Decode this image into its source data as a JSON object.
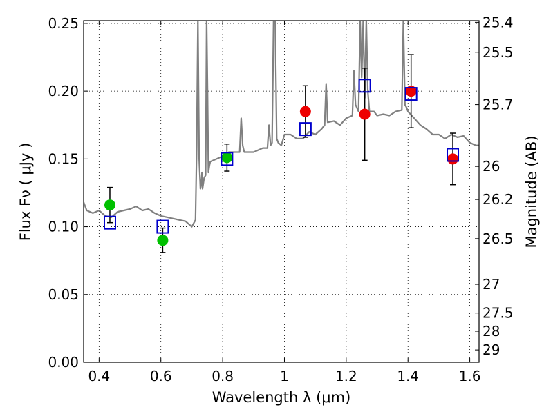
{
  "chart_data": {
    "type": "scatter",
    "xlabel": "Wavelength  λ (μm)",
    "ylabel": "Flux  Fν  ( μJy )",
    "y2label": "Magnitude (AB)",
    "xlim": [
      0.35,
      1.63
    ],
    "ylim": [
      0.0,
      0.252
    ],
    "xticks": [
      0.4,
      0.6,
      0.8,
      1.0,
      1.2,
      1.4,
      1.6
    ],
    "xtick_labels": [
      "0.4",
      "0.6",
      "0.8",
      "1",
      "1.2",
      "1.4",
      "1.6"
    ],
    "yticks": [
      0.0,
      0.05,
      0.1,
      0.15,
      0.2,
      0.25
    ],
    "ytick_labels": [
      "0.00",
      "0.05",
      "0.10",
      "0.15",
      "0.20",
      "0.25"
    ],
    "y2_ticks": [
      {
        "flux": 0.2508,
        "label": "25.4"
      },
      {
        "flux": 0.2287,
        "label": "25.5"
      },
      {
        "flux": 0.1901,
        "label": "25.7"
      },
      {
        "flux": 0.1445,
        "label": "26"
      },
      {
        "flux": 0.1201,
        "label": "26.2"
      },
      {
        "flux": 0.0912,
        "label": "26.5"
      },
      {
        "flux": 0.0575,
        "label": "27"
      },
      {
        "flux": 0.0363,
        "label": "27.5"
      },
      {
        "flux": 0.0229,
        "label": "28"
      },
      {
        "flux": 0.0091,
        "label": "29"
      }
    ],
    "grid": true,
    "colors": {
      "model": "#808080",
      "blue_filters": "#00c000",
      "red_filters": "#ee0000",
      "model_photometry": "#0000cc",
      "error_bars": "#000000"
    },
    "model_spectrum": {
      "x": [
        0.35,
        0.36,
        0.38,
        0.4,
        0.42,
        0.44,
        0.46,
        0.48,
        0.5,
        0.52,
        0.54,
        0.56,
        0.58,
        0.6,
        0.62,
        0.64,
        0.66,
        0.68,
        0.7,
        0.712,
        0.716,
        0.72,
        0.724,
        0.728,
        0.731,
        0.733,
        0.735,
        0.74,
        0.745,
        0.748,
        0.751,
        0.754,
        0.757,
        0.76,
        0.78,
        0.8,
        0.82,
        0.84,
        0.855,
        0.86,
        0.865,
        0.87,
        0.9,
        0.93,
        0.945,
        0.95,
        0.955,
        0.96,
        0.965,
        0.97,
        0.975,
        0.98,
        0.99,
        1.0,
        1.02,
        1.04,
        1.06,
        1.08,
        1.1,
        1.12,
        1.13,
        1.135,
        1.14,
        1.16,
        1.18,
        1.2,
        1.22,
        1.225,
        1.23,
        1.24,
        1.245,
        1.25,
        1.255,
        1.26,
        1.265,
        1.27,
        1.275,
        1.28,
        1.29,
        1.3,
        1.32,
        1.34,
        1.36,
        1.38,
        1.385,
        1.39,
        1.395,
        1.4,
        1.42,
        1.44,
        1.46,
        1.48,
        1.5,
        1.52,
        1.54,
        1.56,
        1.58,
        1.6,
        1.62,
        1.63
      ],
      "y": [
        0.118,
        0.112,
        0.11,
        0.112,
        0.108,
        0.107,
        0.111,
        0.112,
        0.113,
        0.115,
        0.112,
        0.113,
        0.11,
        0.108,
        0.107,
        0.106,
        0.105,
        0.104,
        0.1,
        0.105,
        0.16,
        0.252,
        0.15,
        0.128,
        0.132,
        0.14,
        0.128,
        0.136,
        0.138,
        0.252,
        0.2,
        0.14,
        0.145,
        0.148,
        0.15,
        0.152,
        0.155,
        0.155,
        0.155,
        0.18,
        0.16,
        0.155,
        0.155,
        0.158,
        0.158,
        0.175,
        0.16,
        0.162,
        0.252,
        0.252,
        0.165,
        0.162,
        0.16,
        0.168,
        0.168,
        0.165,
        0.165,
        0.17,
        0.168,
        0.172,
        0.175,
        0.205,
        0.177,
        0.178,
        0.175,
        0.18,
        0.182,
        0.215,
        0.19,
        0.185,
        0.252,
        0.21,
        0.252,
        0.195,
        0.252,
        0.2,
        0.185,
        0.185,
        0.185,
        0.182,
        0.183,
        0.182,
        0.185,
        0.186,
        0.252,
        0.19,
        0.188,
        0.185,
        0.18,
        0.175,
        0.172,
        0.168,
        0.168,
        0.165,
        0.168,
        0.166,
        0.167,
        0.162,
        0.16,
        0.16
      ]
    },
    "series": [
      {
        "marker": "circle",
        "color": "#00c000",
        "points": [
          {
            "x": 0.435,
            "y": 0.116,
            "yerr": 0.013
          },
          {
            "x": 0.606,
            "y": 0.09,
            "yerr": 0.009
          },
          {
            "x": 0.814,
            "y": 0.151,
            "yerr": 0.01
          }
        ]
      },
      {
        "marker": "circle",
        "color": "#ee0000",
        "points": [
          {
            "x": 1.068,
            "y": 0.185,
            "yerr": 0.019
          },
          {
            "x": 1.26,
            "y": 0.183,
            "yerr": 0.034
          },
          {
            "x": 1.41,
            "y": 0.2,
            "yerr": 0.027
          },
          {
            "x": 1.545,
            "y": 0.15,
            "yerr": 0.019
          }
        ]
      },
      {
        "marker": "square",
        "color": "#0000cc",
        "points": [
          {
            "x": 0.435,
            "y": 0.103
          },
          {
            "x": 0.606,
            "y": 0.1
          },
          {
            "x": 0.814,
            "y": 0.15
          },
          {
            "x": 1.068,
            "y": 0.172
          },
          {
            "x": 1.26,
            "y": 0.204
          },
          {
            "x": 1.41,
            "y": 0.198
          },
          {
            "x": 1.545,
            "y": 0.153
          }
        ]
      }
    ]
  }
}
